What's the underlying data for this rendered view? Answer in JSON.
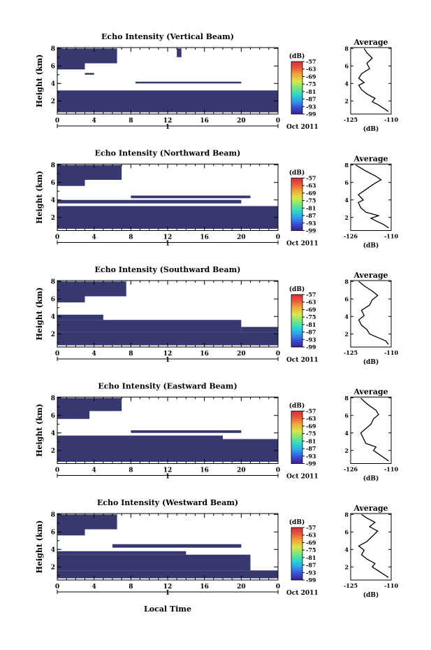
{
  "figure": {
    "x_axis_label": "Local Time",
    "date_label": "Oct 2011",
    "day_label": "1",
    "profile_title": "Average",
    "profile_xlabel": "(dB)",
    "colorbar_unit": "(dB)"
  },
  "chart_data": [
    {
      "type": "heatmap",
      "title": "Echo Intensity (Vertical Beam)",
      "ylabel": "Height (km)",
      "xlabel": "Local Time",
      "x_ticks": [
        "0",
        "4",
        "8",
        "12",
        "16",
        "20",
        "0"
      ],
      "y_ticks": [
        "2",
        "4",
        "6",
        "8"
      ],
      "xlim": [
        0,
        24
      ],
      "ylim": [
        0.5,
        8.1
      ],
      "colorbar_ticks": [
        "-57",
        "-63",
        "-69",
        "-75",
        "-81",
        "-87",
        "-93",
        "-99"
      ],
      "colorbar_range": [
        -99,
        -57
      ],
      "regions": [
        {
          "x": [
            0.0,
            24.0
          ],
          "y": [
            0.7,
            3.2
          ]
        },
        {
          "x": [
            0.0,
            6.5
          ],
          "y": [
            6.3,
            8.0
          ]
        },
        {
          "x": [
            0.0,
            3.0
          ],
          "y": [
            5.6,
            6.3
          ]
        },
        {
          "x": [
            3.0,
            4.0
          ],
          "y": [
            5.0,
            5.2
          ]
        },
        {
          "x": [
            8.5,
            20.0
          ],
          "y": [
            4.0,
            4.2
          ]
        },
        {
          "x": [
            13.0,
            13.5
          ],
          "y": [
            7.0,
            8.0
          ]
        }
      ],
      "profile": {
        "xlim": [
          -125,
          -110
        ],
        "x_ticks": [
          "-125",
          "-110"
        ],
        "y_ticks": [
          "2",
          "4",
          "6",
          "8"
        ],
        "points": [
          [
            -111.0,
            0.8
          ],
          [
            -113.0,
            1.2
          ],
          [
            -115.0,
            1.6
          ],
          [
            -117.0,
            1.9
          ],
          [
            -116.0,
            2.3
          ],
          [
            -119.0,
            2.8
          ],
          [
            -121.0,
            3.3
          ],
          [
            -122.0,
            3.8
          ],
          [
            -120.0,
            4.1
          ],
          [
            -122.0,
            4.6
          ],
          [
            -121.0,
            5.1
          ],
          [
            -118.0,
            5.7
          ],
          [
            -119.0,
            6.3
          ],
          [
            -117.0,
            6.9
          ],
          [
            -119.0,
            7.5
          ],
          [
            -120.0,
            8.0
          ]
        ]
      }
    },
    {
      "type": "heatmap",
      "title": "Echo Intensity (Northward Beam)",
      "ylabel": "Height (km)",
      "xlabel": "Local Time",
      "x_ticks": [
        "0",
        "4",
        "8",
        "12",
        "16",
        "20",
        "0"
      ],
      "y_ticks": [
        "2",
        "4",
        "6",
        "8"
      ],
      "xlim": [
        0,
        24
      ],
      "ylim": [
        0.5,
        8.1
      ],
      "colorbar_ticks": [
        "-57",
        "-63",
        "-69",
        "-75",
        "-81",
        "-87",
        "-93",
        "-99"
      ],
      "colorbar_range": [
        -99,
        -57
      ],
      "regions": [
        {
          "x": [
            0.0,
            24.0
          ],
          "y": [
            0.7,
            3.3
          ]
        },
        {
          "x": [
            0.0,
            7.0
          ],
          "y": [
            6.3,
            8.0
          ]
        },
        {
          "x": [
            0.0,
            3.0
          ],
          "y": [
            5.6,
            6.3
          ]
        },
        {
          "x": [
            0.0,
            20.0
          ],
          "y": [
            3.6,
            4.0
          ]
        },
        {
          "x": [
            8.0,
            21.0
          ],
          "y": [
            4.2,
            4.5
          ]
        }
      ],
      "profile": {
        "xlim": [
          -126,
          -110
        ],
        "x_ticks": [
          "-126",
          "-110"
        ],
        "y_ticks": [
          "2",
          "4",
          "6",
          "8"
        ],
        "points": [
          [
            -111.0,
            0.8
          ],
          [
            -113.0,
            1.2
          ],
          [
            -116.0,
            1.6
          ],
          [
            -118.0,
            1.9
          ],
          [
            -115.0,
            2.2
          ],
          [
            -120.0,
            2.6
          ],
          [
            -122.0,
            3.1
          ],
          [
            -123.0,
            3.7
          ],
          [
            -121.0,
            4.0
          ],
          [
            -123.0,
            4.6
          ],
          [
            -120.0,
            5.2
          ],
          [
            -117.0,
            5.8
          ],
          [
            -114.0,
            6.3
          ],
          [
            -116.0,
            6.7
          ],
          [
            -120.0,
            7.3
          ],
          [
            -124.0,
            8.0
          ]
        ]
      }
    },
    {
      "type": "heatmap",
      "title": "Echo Intensity (Southward Beam)",
      "ylabel": "Height (km)",
      "xlabel": "Local Time",
      "x_ticks": [
        "0",
        "4",
        "8",
        "12",
        "16",
        "20",
        "0"
      ],
      "y_ticks": [
        "2",
        "4",
        "6",
        "8"
      ],
      "xlim": [
        0,
        24
      ],
      "ylim": [
        0.5,
        8.1
      ],
      "colorbar_ticks": [
        "-57",
        "-63",
        "-69",
        "-75",
        "-81",
        "-87",
        "-93",
        "-99"
      ],
      "colorbar_range": [
        -99,
        -57
      ],
      "regions": [
        {
          "x": [
            0.0,
            24.0
          ],
          "y": [
            0.7,
            2.2
          ]
        },
        {
          "x": [
            0.0,
            20.0
          ],
          "y": [
            2.2,
            3.6
          ]
        },
        {
          "x": [
            0.0,
            7.5
          ],
          "y": [
            6.3,
            8.0
          ]
        },
        {
          "x": [
            0.0,
            3.0
          ],
          "y": [
            5.6,
            6.3
          ]
        },
        {
          "x": [
            0.0,
            5.0
          ],
          "y": [
            3.6,
            4.2
          ]
        },
        {
          "x": [
            20.0,
            24.0
          ],
          "y": [
            2.2,
            2.8
          ]
        }
      ],
      "profile": {
        "xlim": [
          -125,
          -110
        ],
        "x_ticks": [
          "-125",
          "-110"
        ],
        "y_ticks": [
          "2",
          "4",
          "6",
          "8"
        ],
        "points": [
          [
            -111.0,
            0.8
          ],
          [
            -112.0,
            1.2
          ],
          [
            -115.0,
            1.6
          ],
          [
            -118.0,
            2.0
          ],
          [
            -119.0,
            2.5
          ],
          [
            -121.0,
            3.0
          ],
          [
            -122.0,
            3.6
          ],
          [
            -120.0,
            4.1
          ],
          [
            -121.0,
            4.7
          ],
          [
            -118.0,
            5.3
          ],
          [
            -117.0,
            5.9
          ],
          [
            -115.0,
            6.4
          ],
          [
            -117.0,
            6.9
          ],
          [
            -120.0,
            7.5
          ],
          [
            -122.0,
            8.0
          ]
        ]
      }
    },
    {
      "type": "heatmap",
      "title": "Echo Intensity (Eastward Beam)",
      "ylabel": "Height (km)",
      "xlabel": "Local Time",
      "x_ticks": [
        "0",
        "4",
        "8",
        "12",
        "16",
        "20",
        "0"
      ],
      "y_ticks": [
        "2",
        "4",
        "6",
        "8"
      ],
      "xlim": [
        0,
        24
      ],
      "ylim": [
        0.5,
        8.1
      ],
      "colorbar_ticks": [
        "-57",
        "-63",
        "-69",
        "-75",
        "-81",
        "-87",
        "-93",
        "-99"
      ],
      "colorbar_range": [
        -99,
        -57
      ],
      "regions": [
        {
          "x": [
            0.0,
            24.0
          ],
          "y": [
            0.7,
            3.3
          ]
        },
        {
          "x": [
            0.0,
            7.0
          ],
          "y": [
            6.5,
            8.0
          ]
        },
        {
          "x": [
            0.0,
            3.5
          ],
          "y": [
            5.6,
            6.5
          ]
        },
        {
          "x": [
            0.0,
            18.0
          ],
          "y": [
            3.3,
            3.7
          ]
        },
        {
          "x": [
            8.0,
            20.0
          ],
          "y": [
            4.0,
            4.3
          ]
        }
      ],
      "profile": {
        "xlim": [
          -126,
          -110
        ],
        "x_ticks": [
          "-126",
          "-110"
        ],
        "y_ticks": [
          "2",
          "4",
          "6",
          "8"
        ],
        "points": [
          [
            -111.0,
            0.8
          ],
          [
            -113.0,
            1.2
          ],
          [
            -115.0,
            1.6
          ],
          [
            -117.0,
            2.0
          ],
          [
            -116.0,
            2.4
          ],
          [
            -120.0,
            2.8
          ],
          [
            -121.0,
            3.4
          ],
          [
            -122.0,
            4.0
          ],
          [
            -120.0,
            4.5
          ],
          [
            -118.0,
            5.0
          ],
          [
            -117.0,
            5.6
          ],
          [
            -115.0,
            6.1
          ],
          [
            -116.0,
            6.6
          ],
          [
            -119.0,
            7.2
          ],
          [
            -121.0,
            7.7
          ],
          [
            -122.0,
            8.0
          ]
        ]
      }
    },
    {
      "type": "heatmap",
      "title": "Echo Intensity (Westward Beam)",
      "ylabel": "Height (km)",
      "xlabel": "Local Time",
      "x_ticks": [
        "0",
        "4",
        "8",
        "12",
        "16",
        "20",
        "0"
      ],
      "y_ticks": [
        "2",
        "4",
        "6",
        "8"
      ],
      "xlim": [
        0,
        24
      ],
      "ylim": [
        0.5,
        8.1
      ],
      "colorbar_ticks": [
        "-57",
        "-63",
        "-69",
        "-75",
        "-81",
        "-87",
        "-93",
        "-99"
      ],
      "colorbar_range": [
        -99,
        -57
      ],
      "regions": [
        {
          "x": [
            0.0,
            24.0
          ],
          "y": [
            0.7,
            1.6
          ]
        },
        {
          "x": [
            0.0,
            21.0
          ],
          "y": [
            1.6,
            3.4
          ]
        },
        {
          "x": [
            0.0,
            6.5
          ],
          "y": [
            6.3,
            8.0
          ]
        },
        {
          "x": [
            0.0,
            3.0
          ],
          "y": [
            5.6,
            6.3
          ]
        },
        {
          "x": [
            0.0,
            14.0
          ],
          "y": [
            3.4,
            3.8
          ]
        },
        {
          "x": [
            6.0,
            20.0
          ],
          "y": [
            4.2,
            4.6
          ]
        }
      ],
      "profile": {
        "xlim": [
          -125,
          -110
        ],
        "x_ticks": [
          "-125",
          "-110"
        ],
        "y_ticks": [
          "2",
          "4",
          "6",
          "8"
        ],
        "points": [
          [
            -111.0,
            0.8
          ],
          [
            -113.0,
            1.2
          ],
          [
            -115.0,
            1.6
          ],
          [
            -117.0,
            2.0
          ],
          [
            -116.0,
            2.4
          ],
          [
            -119.0,
            2.9
          ],
          [
            -121.0,
            3.4
          ],
          [
            -120.0,
            3.9
          ],
          [
            -122.0,
            4.4
          ],
          [
            -119.0,
            4.9
          ],
          [
            -117.0,
            5.5
          ],
          [
            -115.0,
            6.1
          ],
          [
            -118.0,
            6.6
          ],
          [
            -116.0,
            7.1
          ],
          [
            -119.0,
            7.6
          ],
          [
            -121.0,
            8.0
          ]
        ]
      }
    }
  ],
  "colors": {
    "echo_fill": "#383870",
    "colorbar": [
      "#3b1f8f",
      "#3a4fd4",
      "#2e9ff0",
      "#2fd9c9",
      "#7ce67a",
      "#d7e84a",
      "#f2a93b",
      "#e85b3b",
      "#d92b3b"
    ]
  }
}
